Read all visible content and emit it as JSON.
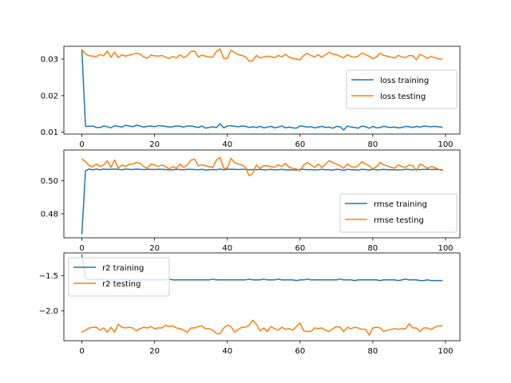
{
  "chart_data": [
    {
      "type": "line",
      "xlim": [
        -4.95,
        103.95
      ],
      "ylim": [
        0.0095,
        0.0335
      ],
      "xticks": [
        0,
        20,
        40,
        60,
        80,
        100
      ],
      "yticks": [
        0.01,
        0.02,
        0.03
      ],
      "ytick_labels": [
        "0.01",
        "0.02",
        "0.03"
      ],
      "legend_position": "center-right",
      "series": [
        {
          "name": "loss training",
          "color": "#1f77b4",
          "values": [
            0.0325,
            0.0116,
            0.0116,
            0.0117,
            0.0113,
            0.0113,
            0.0117,
            0.0115,
            0.0112,
            0.0118,
            0.0116,
            0.0114,
            0.0119,
            0.0117,
            0.0115,
            0.0119,
            0.0117,
            0.0114,
            0.0116,
            0.0117,
            0.0115,
            0.0118,
            0.0117,
            0.0116,
            0.0114,
            0.0115,
            0.0117,
            0.0116,
            0.0114,
            0.0117,
            0.0117,
            0.0115,
            0.0113,
            0.0117,
            0.0111,
            0.0113,
            0.0115,
            0.0113,
            0.0123,
            0.0112,
            0.0117,
            0.0118,
            0.0116,
            0.0115,
            0.0117,
            0.0116,
            0.0113,
            0.0115,
            0.0113,
            0.0116,
            0.0112,
            0.0114,
            0.0116,
            0.0112,
            0.0114,
            0.0117,
            0.0112,
            0.0114,
            0.0112,
            0.0111,
            0.0117,
            0.0116,
            0.0114,
            0.0115,
            0.0112,
            0.0114,
            0.0116,
            0.0113,
            0.0114,
            0.0111,
            0.0116,
            0.0115,
            0.0106,
            0.0117,
            0.0114,
            0.0113,
            0.0111,
            0.0117,
            0.0115,
            0.0111,
            0.0116,
            0.0112,
            0.0113,
            0.0116,
            0.0114,
            0.0113,
            0.0114,
            0.0112,
            0.0113,
            0.0116,
            0.0115,
            0.0113,
            0.0116,
            0.0114,
            0.0117,
            0.0116,
            0.0115,
            0.0116,
            0.0115,
            0.0114
          ]
        },
        {
          "name": "loss testing",
          "color": "#ff7f0e",
          "values": [
            0.0325,
            0.0314,
            0.0309,
            0.0308,
            0.0307,
            0.0313,
            0.0309,
            0.0322,
            0.0305,
            0.0319,
            0.0304,
            0.0312,
            0.0308,
            0.0311,
            0.0313,
            0.0316,
            0.0314,
            0.0306,
            0.0302,
            0.0311,
            0.0309,
            0.0308,
            0.031,
            0.0305,
            0.0302,
            0.0307,
            0.0303,
            0.0312,
            0.0304,
            0.031,
            0.0321,
            0.0322,
            0.0306,
            0.0311,
            0.0308,
            0.0306,
            0.0305,
            0.0321,
            0.0328,
            0.0302,
            0.0302,
            0.0324,
            0.0318,
            0.0312,
            0.031,
            0.0306,
            0.0294,
            0.0296,
            0.031,
            0.0303,
            0.0306,
            0.0308,
            0.0306,
            0.0304,
            0.031,
            0.0306,
            0.0313,
            0.0305,
            0.0302,
            0.03,
            0.0298,
            0.031,
            0.0316,
            0.031,
            0.0306,
            0.0312,
            0.0305,
            0.0312,
            0.0318,
            0.0314,
            0.0312,
            0.0308,
            0.0303,
            0.0312,
            0.0307,
            0.0305,
            0.0308,
            0.0317,
            0.0312,
            0.0308,
            0.0301,
            0.0306,
            0.0316,
            0.031,
            0.0308,
            0.0305,
            0.0303,
            0.031,
            0.0306,
            0.0304,
            0.031,
            0.0309,
            0.0298,
            0.0313,
            0.0308,
            0.0302,
            0.0307,
            0.0304,
            0.0301,
            0.03
          ]
        }
      ]
    },
    {
      "type": "line",
      "xlim": [
        -4.95,
        103.95
      ],
      "ylim": [
        0.4655,
        0.5185
      ],
      "xticks": [
        0,
        20,
        40,
        60,
        80,
        100
      ],
      "yticks": [
        0.48,
        0.5
      ],
      "ytick_labels": [
        "0.48",
        "0.50"
      ],
      "legend_position": "lower-right",
      "series": [
        {
          "name": "rmse training",
          "color": "#1f77b4",
          "values": [
            0.468,
            0.506,
            0.507,
            0.5065,
            0.507,
            0.5065,
            0.507,
            0.5068,
            0.5068,
            0.507,
            0.5068,
            0.5066,
            0.507,
            0.5068,
            0.5067,
            0.507,
            0.5068,
            0.5067,
            0.5068,
            0.5068,
            0.5067,
            0.5069,
            0.5068,
            0.5067,
            0.5066,
            0.5066,
            0.5068,
            0.5067,
            0.5066,
            0.5068,
            0.5068,
            0.5067,
            0.5066,
            0.5068,
            0.5064,
            0.5066,
            0.5067,
            0.5066,
            0.507,
            0.5065,
            0.5068,
            0.5069,
            0.5068,
            0.5067,
            0.5068,
            0.5068,
            0.5066,
            0.5067,
            0.5066,
            0.5068,
            0.5065,
            0.5066,
            0.5068,
            0.5065,
            0.5066,
            0.5068,
            0.5065,
            0.5066,
            0.5065,
            0.5064,
            0.5068,
            0.5068,
            0.5066,
            0.5067,
            0.5065,
            0.5066,
            0.5068,
            0.5066,
            0.5066,
            0.5064,
            0.5068,
            0.5067,
            0.5062,
            0.5068,
            0.5066,
            0.5066,
            0.5064,
            0.5068,
            0.5067,
            0.5064,
            0.5068,
            0.5065,
            0.5066,
            0.5068,
            0.5066,
            0.5066,
            0.5066,
            0.5065,
            0.5066,
            0.5068,
            0.5067,
            0.5066,
            0.5068,
            0.5066,
            0.5068,
            0.5068,
            0.5067,
            0.5068,
            0.5067,
            0.5066
          ]
        },
        {
          "name": "rmse testing",
          "color": "#ff7f0e",
          "values": [
            0.513,
            0.5115,
            0.509,
            0.5085,
            0.51,
            0.5085,
            0.5095,
            0.512,
            0.508,
            0.5125,
            0.5075,
            0.5095,
            0.5085,
            0.51,
            0.51,
            0.511,
            0.5105,
            0.5085,
            0.5075,
            0.51,
            0.5095,
            0.5085,
            0.5095,
            0.5085,
            0.507,
            0.5085,
            0.5075,
            0.51,
            0.508,
            0.5095,
            0.5125,
            0.513,
            0.509,
            0.5095,
            0.509,
            0.5085,
            0.508,
            0.5125,
            0.514,
            0.5075,
            0.5075,
            0.5135,
            0.511,
            0.51,
            0.5095,
            0.508,
            0.503,
            0.5045,
            0.5095,
            0.5075,
            0.509,
            0.509,
            0.5085,
            0.508,
            0.5095,
            0.5085,
            0.5105,
            0.508,
            0.5075,
            0.507,
            0.506,
            0.5095,
            0.511,
            0.5095,
            0.508,
            0.51,
            0.508,
            0.51,
            0.512,
            0.511,
            0.51,
            0.509,
            0.5075,
            0.51,
            0.5085,
            0.508,
            0.509,
            0.5115,
            0.51,
            0.509,
            0.507,
            0.5085,
            0.511,
            0.5095,
            0.509,
            0.508,
            0.5075,
            0.5095,
            0.5085,
            0.508,
            0.5095,
            0.509,
            0.506,
            0.51,
            0.509,
            0.5075,
            0.5085,
            0.508,
            0.507,
            0.506
          ]
        }
      ]
    },
    {
      "type": "line",
      "xlim": [
        -4.95,
        103.95
      ],
      "ylim": [
        -2.42,
        -1.18
      ],
      "xticks": [
        0,
        20,
        40,
        60,
        80,
        100
      ],
      "yticks": [
        -1.5,
        -2.0
      ],
      "ytick_labels": [
        "−1.5",
        "−2.0"
      ],
      "legend_position": "upper-left",
      "series": [
        {
          "name": "r2 training",
          "color": "#1f77b4",
          "values": [
            -1.21,
            -1.54,
            -1.56,
            -1.55,
            -1.56,
            -1.55,
            -1.56,
            -1.56,
            -1.56,
            -1.56,
            -1.56,
            -1.55,
            -1.56,
            -1.56,
            -1.56,
            -1.56,
            -1.56,
            -1.56,
            -1.56,
            -1.56,
            -1.56,
            -1.56,
            -1.56,
            -1.56,
            -1.55,
            -1.56,
            -1.56,
            -1.56,
            -1.56,
            -1.56,
            -1.56,
            -1.56,
            -1.56,
            -1.56,
            -1.56,
            -1.56,
            -1.55,
            -1.56,
            -1.56,
            -1.56,
            -1.56,
            -1.56,
            -1.56,
            -1.56,
            -1.56,
            -1.56,
            -1.55,
            -1.56,
            -1.56,
            -1.56,
            -1.55,
            -1.56,
            -1.56,
            -1.56,
            -1.55,
            -1.56,
            -1.56,
            -1.56,
            -1.56,
            -1.57,
            -1.56,
            -1.56,
            -1.55,
            -1.56,
            -1.56,
            -1.56,
            -1.56,
            -1.56,
            -1.56,
            -1.56,
            -1.56,
            -1.55,
            -1.56,
            -1.56,
            -1.56,
            -1.57,
            -1.56,
            -1.56,
            -1.56,
            -1.56,
            -1.56,
            -1.56,
            -1.57,
            -1.56,
            -1.56,
            -1.56,
            -1.56,
            -1.57,
            -1.56,
            -1.55,
            -1.56,
            -1.56,
            -1.56,
            -1.57,
            -1.57,
            -1.56,
            -1.57,
            -1.57,
            -1.57,
            -1.57
          ]
        },
        {
          "name": "r2 testing",
          "color": "#ff7f0e",
          "values": [
            -2.3,
            -2.27,
            -2.24,
            -2.23,
            -2.23,
            -2.27,
            -2.24,
            -2.3,
            -2.23,
            -2.3,
            -2.19,
            -2.23,
            -2.24,
            -2.23,
            -2.24,
            -2.28,
            -2.25,
            -2.23,
            -2.24,
            -2.22,
            -2.25,
            -2.24,
            -2.24,
            -2.2,
            -2.22,
            -2.21,
            -2.24,
            -2.25,
            -2.27,
            -2.3,
            -2.24,
            -2.24,
            -2.22,
            -2.21,
            -2.25,
            -2.25,
            -2.27,
            -2.32,
            -2.32,
            -2.24,
            -2.2,
            -2.22,
            -2.3,
            -2.26,
            -2.23,
            -2.23,
            -2.2,
            -2.13,
            -2.19,
            -2.28,
            -2.24,
            -2.29,
            -2.22,
            -2.25,
            -2.27,
            -2.23,
            -2.26,
            -2.25,
            -2.27,
            -2.22,
            -2.17,
            -2.28,
            -2.29,
            -2.29,
            -2.24,
            -2.25,
            -2.24,
            -2.27,
            -2.29,
            -2.25,
            -2.22,
            -2.23,
            -2.29,
            -2.23,
            -2.25,
            -2.23,
            -2.24,
            -2.26,
            -2.26,
            -2.34,
            -2.24,
            -2.23,
            -2.24,
            -2.29,
            -2.27,
            -2.26,
            -2.25,
            -2.26,
            -2.25,
            -2.25,
            -2.18,
            -2.24,
            -2.24,
            -2.29,
            -2.24,
            -2.24,
            -2.26,
            -2.23,
            -2.21,
            -2.21
          ]
        }
      ]
    }
  ]
}
